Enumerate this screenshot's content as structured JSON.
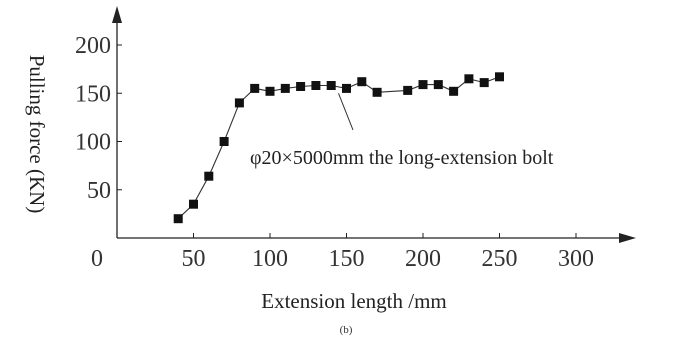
{
  "chart_data": {
    "type": "line",
    "xlabel": "Extension length /mm",
    "ylabel": "Pulling force (KN)",
    "caption": "(b)",
    "xlim": [
      0,
      340
    ],
    "ylim": [
      0,
      220
    ],
    "x_ticks": [
      0,
      50,
      100,
      150,
      200,
      250,
      300
    ],
    "y_ticks": [
      50,
      100,
      150,
      200
    ],
    "marker": "square",
    "grid": false,
    "series": [
      {
        "x": [
          40,
          50,
          60,
          70,
          80,
          90,
          100,
          110,
          120,
          130,
          140,
          150,
          160,
          170,
          190,
          200,
          210,
          220,
          230,
          240,
          250
        ],
        "y": [
          20,
          35,
          64,
          100,
          140,
          155,
          152,
          155,
          157,
          158,
          158,
          155,
          162,
          151,
          153,
          159,
          159,
          152,
          165,
          161,
          167
        ]
      }
    ],
    "annotations": [
      {
        "text": "φ20×5000mm the long-extension bolt",
        "x": 150,
        "y": 152
      }
    ]
  }
}
